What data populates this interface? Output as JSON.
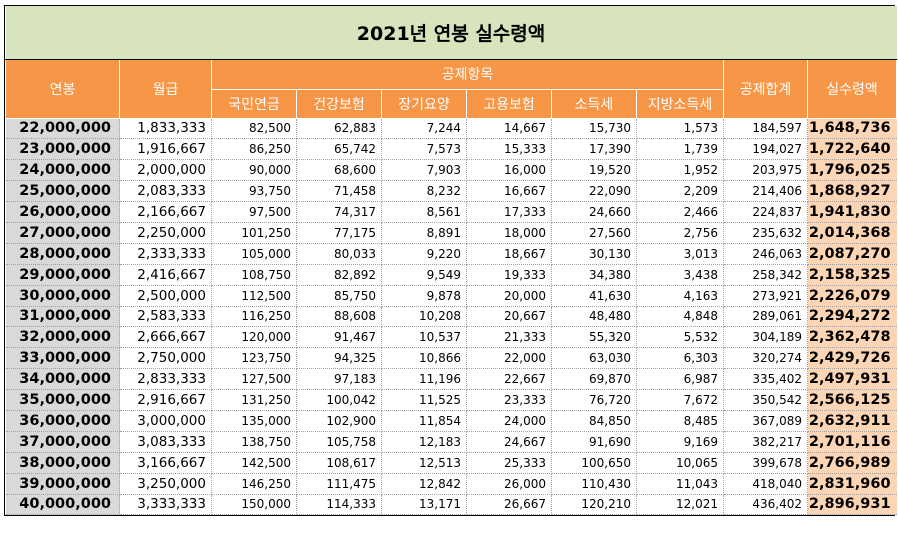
{
  "title": "2021년 연봉 실수령액",
  "headers": {
    "salary": "연봉",
    "monthly": "월급",
    "deduction_group": "공제항목",
    "pension": "국민연금",
    "health": "건강보험",
    "longterm": "장기요양",
    "employment": "고용보험",
    "income_tax": "소득세",
    "local_tax": "지방소득세",
    "total_deduction": "공제합계",
    "net": "실수령액"
  },
  "rows": [
    [
      "22,000,000",
      "1,833,333",
      "82,500",
      "62,883",
      "7,244",
      "14,667",
      "15,730",
      "1,573",
      "184,597",
      "1,648,736"
    ],
    [
      "23,000,000",
      "1,916,667",
      "86,250",
      "65,742",
      "7,573",
      "15,333",
      "17,390",
      "1,739",
      "194,027",
      "1,722,640"
    ],
    [
      "24,000,000",
      "2,000,000",
      "90,000",
      "68,600",
      "7,903",
      "16,000",
      "19,520",
      "1,952",
      "203,975",
      "1,796,025"
    ],
    [
      "25,000,000",
      "2,083,333",
      "93,750",
      "71,458",
      "8,232",
      "16,667",
      "22,090",
      "2,209",
      "214,406",
      "1,868,927"
    ],
    [
      "26,000,000",
      "2,166,667",
      "97,500",
      "74,317",
      "8,561",
      "17,333",
      "24,660",
      "2,466",
      "224,837",
      "1,941,830"
    ],
    [
      "27,000,000",
      "2,250,000",
      "101,250",
      "77,175",
      "8,891",
      "18,000",
      "27,560",
      "2,756",
      "235,632",
      "2,014,368"
    ],
    [
      "28,000,000",
      "2,333,333",
      "105,000",
      "80,033",
      "9,220",
      "18,667",
      "30,130",
      "3,013",
      "246,063",
      "2,087,270"
    ],
    [
      "29,000,000",
      "2,416,667",
      "108,750",
      "82,892",
      "9,549",
      "19,333",
      "34,380",
      "3,438",
      "258,342",
      "2,158,325"
    ],
    [
      "30,000,000",
      "2,500,000",
      "112,500",
      "85,750",
      "9,878",
      "20,000",
      "41,630",
      "4,163",
      "273,921",
      "2,226,079"
    ],
    [
      "31,000,000",
      "2,583,333",
      "116,250",
      "88,608",
      "10,208",
      "20,667",
      "48,480",
      "4,848",
      "289,061",
      "2,294,272"
    ],
    [
      "32,000,000",
      "2,666,667",
      "120,000",
      "91,467",
      "10,537",
      "21,333",
      "55,320",
      "5,532",
      "304,189",
      "2,362,478"
    ],
    [
      "33,000,000",
      "2,750,000",
      "123,750",
      "94,325",
      "10,866",
      "22,000",
      "63,030",
      "6,303",
      "320,274",
      "2,429,726"
    ],
    [
      "34,000,000",
      "2,833,333",
      "127,500",
      "97,183",
      "11,196",
      "22,667",
      "69,870",
      "6,987",
      "335,402",
      "2,497,931"
    ],
    [
      "35,000,000",
      "2,916,667",
      "131,250",
      "100,042",
      "11,525",
      "23,333",
      "76,720",
      "7,672",
      "350,542",
      "2,566,125"
    ],
    [
      "36,000,000",
      "3,000,000",
      "135,000",
      "102,900",
      "11,854",
      "24,000",
      "84,850",
      "8,485",
      "367,089",
      "2,632,911"
    ],
    [
      "37,000,000",
      "3,083,333",
      "138,750",
      "105,758",
      "12,183",
      "24,667",
      "91,690",
      "9,169",
      "382,217",
      "2,701,116"
    ],
    [
      "38,000,000",
      "3,166,667",
      "142,500",
      "108,617",
      "12,513",
      "25,333",
      "100,650",
      "10,065",
      "399,678",
      "2,766,989"
    ],
    [
      "39,000,000",
      "3,250,000",
      "146,250",
      "111,475",
      "12,842",
      "26,000",
      "110,430",
      "11,043",
      "418,040",
      "2,831,960"
    ],
    [
      "40,000,000",
      "3,333,333",
      "150,000",
      "114,333",
      "13,171",
      "26,667",
      "120,210",
      "12,021",
      "436,402",
      "2,896,931"
    ]
  ]
}
